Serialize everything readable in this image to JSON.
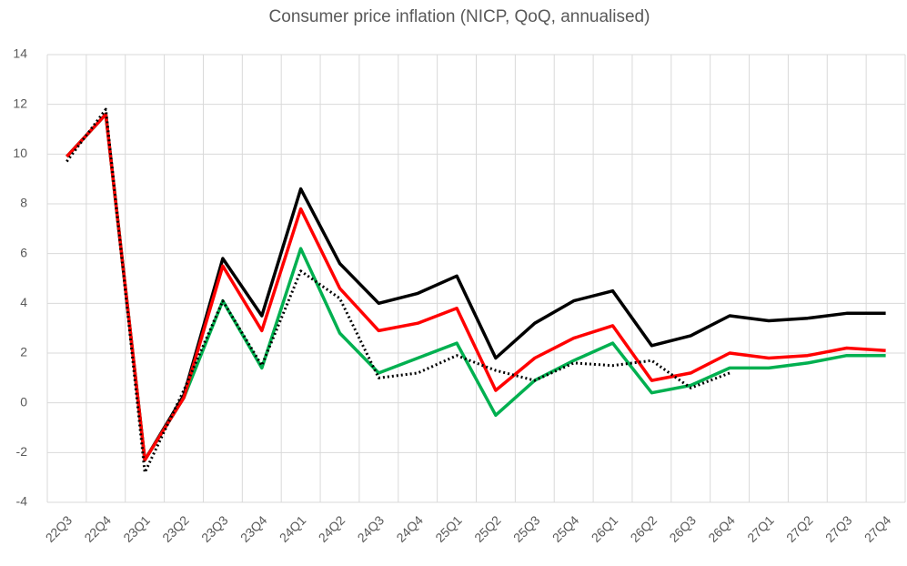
{
  "chart_data": {
    "type": "line",
    "title": "Consumer price inflation (NICP, QoQ, annualised)",
    "categories": [
      "22Q3",
      "22Q4",
      "23Q1",
      "23Q2",
      "23Q3",
      "23Q4",
      "24Q1",
      "24Q2",
      "24Q3",
      "24Q4",
      "25Q1",
      "25Q2",
      "25Q3",
      "25Q4",
      "26Q1",
      "26Q2",
      "26Q3",
      "26Q4",
      "27Q1",
      "27Q2",
      "27Q3",
      "27Q4"
    ],
    "series": [
      {
        "color": "#000000",
        "dash": false,
        "values": [
          9.9,
          11.6,
          -2.3,
          0.3,
          5.8,
          3.5,
          8.6,
          5.6,
          4.0,
          4.4,
          5.1,
          1.8,
          3.2,
          4.1,
          4.5,
          2.3,
          2.7,
          3.5,
          3.3,
          3.4,
          3.6,
          3.6
        ]
      },
      {
        "color": "#00b050",
        "dash": false,
        "values": [
          9.9,
          11.6,
          -2.3,
          0.2,
          4.1,
          1.4,
          6.2,
          2.8,
          1.2,
          1.8,
          2.4,
          -0.5,
          0.9,
          1.7,
          2.4,
          0.4,
          0.7,
          1.4,
          1.4,
          1.6,
          1.9,
          1.9
        ]
      },
      {
        "color": "#ff0000",
        "dash": false,
        "values": [
          9.9,
          11.6,
          -2.3,
          0.2,
          5.5,
          2.9,
          7.8,
          4.6,
          2.9,
          3.2,
          3.8,
          0.5,
          1.8,
          2.6,
          3.1,
          0.9,
          1.2,
          2.0,
          1.8,
          1.9,
          2.2,
          2.1
        ]
      },
      {
        "color": "#000000",
        "dash": true,
        "values": [
          9.7,
          11.8,
          -2.8,
          0.5,
          4.1,
          1.5,
          5.3,
          4.2,
          1.0,
          1.2,
          1.9,
          1.3,
          0.9,
          1.6,
          1.5,
          1.7,
          0.6,
          1.2,
          null,
          null,
          null,
          null
        ]
      }
    ],
    "ylim": [
      -4,
      14
    ],
    "yticks": [
      -4,
      -2,
      0,
      2,
      4,
      6,
      8,
      10,
      12,
      14
    ],
    "grid": true
  }
}
